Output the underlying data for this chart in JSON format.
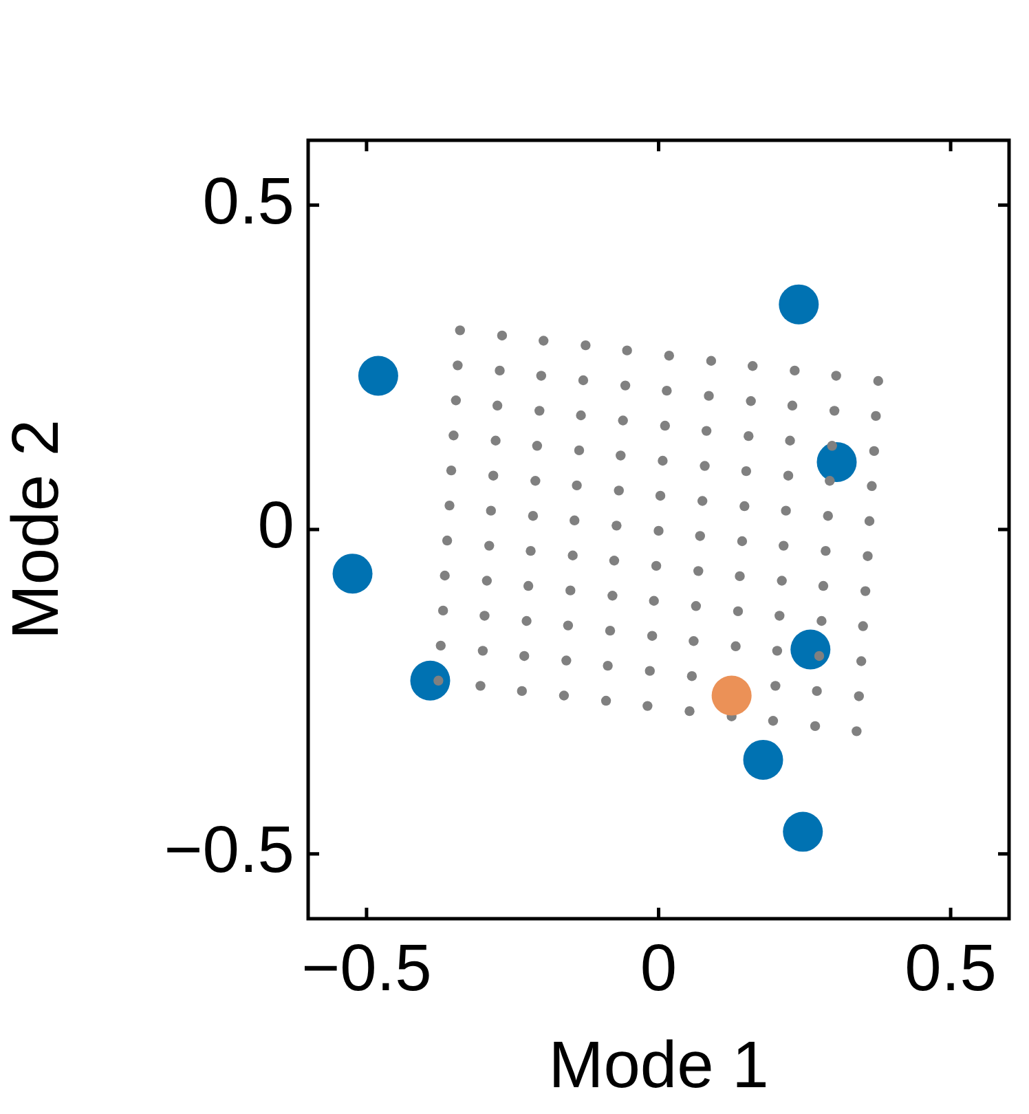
{
  "chart_data": {
    "type": "scatter",
    "xlabel": "Mode 1",
    "ylabel": "Mode 2",
    "xlim": [
      -0.6,
      0.6
    ],
    "ylim": [
      -0.6,
      0.6
    ],
    "xticks": [
      {
        "value": -0.5,
        "label": "−0.5"
      },
      0,
      0.5
    ],
    "yticks": [
      {
        "value": -0.5,
        "label": "−0.5"
      },
      0,
      0.5
    ],
    "grid": false,
    "legend": false,
    "marker": "circle",
    "series": [
      {
        "color": "#0072b2",
        "x": [
          0.24,
          -0.48,
          0.305,
          -0.524,
          0.26,
          -0.391,
          0.179,
          0.247
        ],
        "values": [
          0.347,
          0.237,
          0.104,
          -0.068,
          -0.185,
          -0.233,
          -0.355,
          -0.466
        ]
      },
      {
        "color": "#808080",
        "x": [
          -0.34,
          -0.268,
          -0.197,
          -0.125,
          -0.054,
          0.018,
          0.09,
          0.161,
          0.233,
          0.304,
          0.376,
          -0.344,
          -0.272,
          -0.201,
          -0.129,
          -0.057,
          0.014,
          0.086,
          0.158,
          0.229,
          0.301,
          0.372,
          -0.347,
          -0.276,
          -0.204,
          -0.133,
          -0.061,
          0.011,
          0.082,
          0.154,
          0.225,
          0.297,
          0.369,
          -0.351,
          -0.279,
          -0.208,
          -0.136,
          -0.065,
          0.007,
          0.079,
          0.15,
          0.222,
          0.293,
          0.365,
          -0.355,
          -0.283,
          -0.211,
          -0.14,
          -0.068,
          0.003,
          0.075,
          0.147,
          0.218,
          0.29,
          0.361,
          -0.358,
          -0.287,
          -0.215,
          -0.144,
          -0.072,
          0.0,
          0.071,
          0.143,
          0.214,
          0.286,
          0.358,
          -0.362,
          -0.29,
          -0.219,
          -0.147,
          -0.076,
          -0.004,
          0.068,
          0.139,
          0.211,
          0.282,
          0.354,
          -0.366,
          -0.294,
          -0.223,
          -0.151,
          -0.079,
          -0.008,
          0.064,
          0.136,
          0.207,
          0.279,
          0.35,
          -0.369,
          -0.298,
          -0.226,
          -0.155,
          -0.083,
          -0.011,
          0.06,
          0.132,
          0.203,
          0.275,
          0.347,
          -0.373,
          -0.301,
          -0.23,
          -0.158,
          -0.087,
          -0.015,
          0.057,
          0.128,
          0.2,
          0.271,
          0.343,
          -0.377,
          -0.305,
          -0.234,
          -0.162,
          -0.09,
          -0.019,
          0.053,
          0.125,
          0.196,
          0.268,
          0.339
        ],
        "values": [
          0.307,
          0.299,
          0.291,
          0.284,
          0.276,
          0.268,
          0.26,
          0.252,
          0.245,
          0.237,
          0.229,
          0.253,
          0.245,
          0.237,
          0.23,
          0.222,
          0.214,
          0.206,
          0.198,
          0.191,
          0.183,
          0.175,
          0.199,
          0.191,
          0.183,
          0.176,
          0.168,
          0.16,
          0.152,
          0.144,
          0.137,
          0.129,
          0.121,
          0.145,
          0.137,
          0.129,
          0.122,
          0.114,
          0.106,
          0.098,
          0.09,
          0.083,
          0.075,
          0.067,
          0.091,
          0.083,
          0.075,
          0.068,
          0.06,
          0.052,
          0.044,
          0.036,
          0.029,
          0.021,
          0.013,
          0.037,
          0.029,
          0.021,
          0.014,
          0.006,
          -0.002,
          -0.01,
          -0.018,
          -0.025,
          -0.033,
          -0.041,
          -0.017,
          -0.025,
          -0.033,
          -0.04,
          -0.048,
          -0.056,
          -0.064,
          -0.072,
          -0.079,
          -0.087,
          -0.095,
          -0.071,
          -0.079,
          -0.087,
          -0.094,
          -0.102,
          -0.11,
          -0.118,
          -0.126,
          -0.133,
          -0.141,
          -0.149,
          -0.125,
          -0.133,
          -0.141,
          -0.148,
          -0.156,
          -0.164,
          -0.172,
          -0.18,
          -0.187,
          -0.195,
          -0.203,
          -0.179,
          -0.187,
          -0.195,
          -0.202,
          -0.21,
          -0.218,
          -0.226,
          null,
          -0.241,
          -0.249,
          -0.257,
          -0.233,
          -0.241,
          -0.249,
          -0.256,
          -0.264,
          -0.272,
          -0.28,
          -0.288,
          -0.295,
          -0.303,
          -0.311
        ]
      },
      {
        "color": "#eb9157",
        "x": [
          0.125
        ],
        "values": [
          -0.256
        ]
      }
    ]
  }
}
